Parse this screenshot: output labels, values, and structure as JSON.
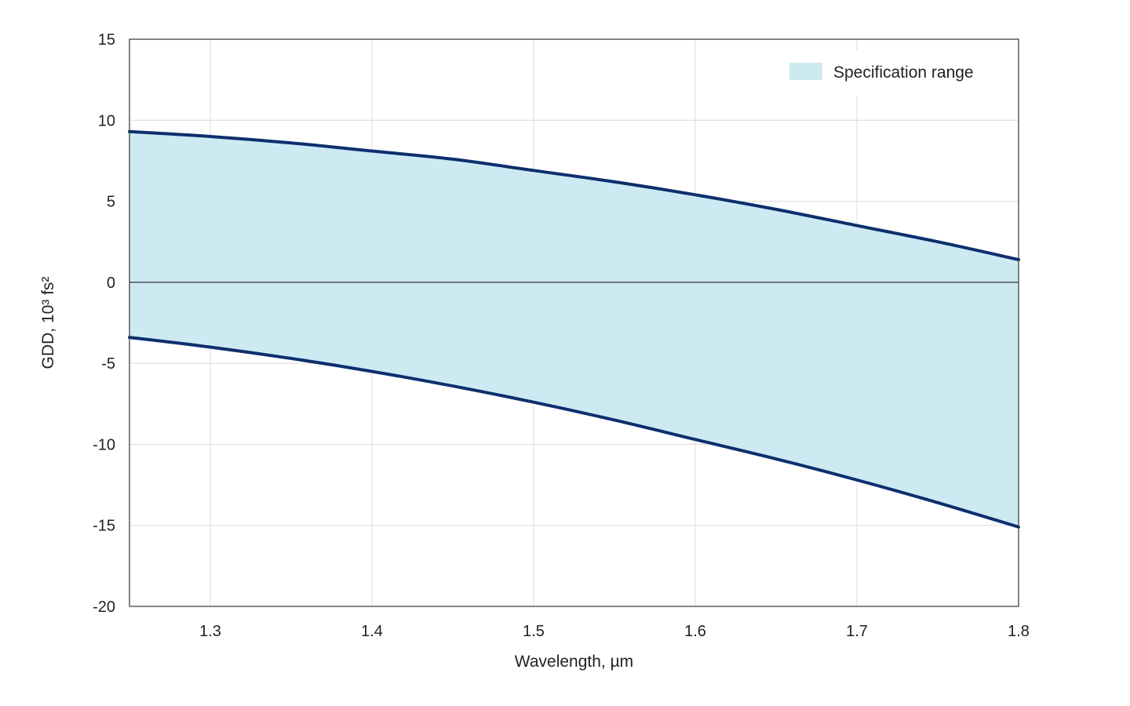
{
  "chart_data": {
    "type": "area",
    "xlabel": "Wavelength, µm",
    "ylabel": "GDD, 10³ fs²",
    "xlim": [
      1.25,
      1.8
    ],
    "ylim": [
      -20,
      15
    ],
    "x_ticks": [
      1.3,
      1.4,
      1.5,
      1.6,
      1.7,
      1.8
    ],
    "x_tick_labels": [
      "1.3",
      "1.4",
      "1.5",
      "1.6",
      "1.7",
      "1.8"
    ],
    "y_ticks": [
      15,
      10,
      5,
      0,
      -5,
      -10,
      -15,
      -20
    ],
    "y_tick_labels": [
      "15",
      "10",
      "5",
      "0",
      "-5",
      "-10",
      "-15",
      "-20"
    ],
    "grid": true,
    "legend_position": "top-right",
    "legend": [
      {
        "label": "Specification range"
      }
    ],
    "series": [
      {
        "name": "Specification range",
        "x": [
          1.25,
          1.3,
          1.35,
          1.4,
          1.45,
          1.5,
          1.55,
          1.6,
          1.65,
          1.7,
          1.75,
          1.8
        ],
        "upper": [
          9.3,
          9.0,
          8.6,
          8.1,
          7.6,
          6.9,
          6.2,
          5.4,
          4.5,
          3.5,
          2.5,
          1.4
        ],
        "lower": [
          -3.4,
          -4.0,
          -4.7,
          -5.5,
          -6.4,
          -7.4,
          -8.5,
          -9.7,
          -10.9,
          -12.2,
          -13.6,
          -15.1
        ]
      }
    ],
    "colors": {
      "fill": "#cdeaf3",
      "line": "#0d2f6e",
      "grid": "#dcdcdc",
      "frame": "#333333",
      "zero_line": "#333333"
    }
  }
}
